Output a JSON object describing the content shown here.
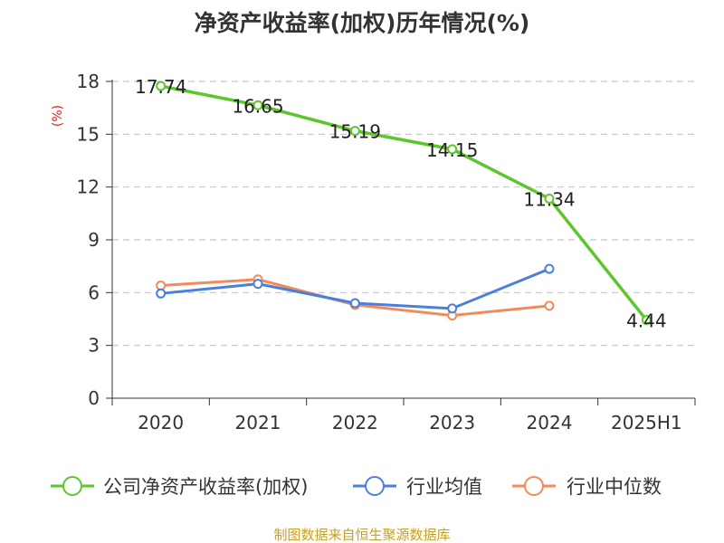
{
  "chart_data": {
    "type": "line",
    "title": "净资产收益率(加权)历年情况(%)",
    "xlabel": "",
    "ylabel": "(%)",
    "categories": [
      "2020",
      "2021",
      "2022",
      "2023",
      "2024",
      "2025H1"
    ],
    "ylim": [
      0,
      18
    ],
    "yticks": [
      0,
      3,
      6,
      9,
      12,
      15,
      18
    ],
    "grid": true,
    "legend_position": "bottom",
    "series": [
      {
        "name": "公司净资产收益率(加权)",
        "color": "#5cc72a",
        "values": [
          17.74,
          16.65,
          15.19,
          14.15,
          11.34,
          4.44
        ],
        "data_labels": [
          "17.74",
          "16.65",
          "15.19",
          "14.15",
          "11.34",
          "4.44"
        ]
      },
      {
        "name": "行业均值",
        "color": "#4a7fdc",
        "values": [
          5.95,
          6.5,
          5.4,
          5.1,
          7.35,
          null
        ]
      },
      {
        "name": "行业中位数",
        "color": "#f28a5a",
        "values": [
          6.4,
          6.75,
          5.3,
          4.7,
          5.25,
          null
        ]
      }
    ],
    "source": "制图数据来自恒生聚源数据库"
  }
}
